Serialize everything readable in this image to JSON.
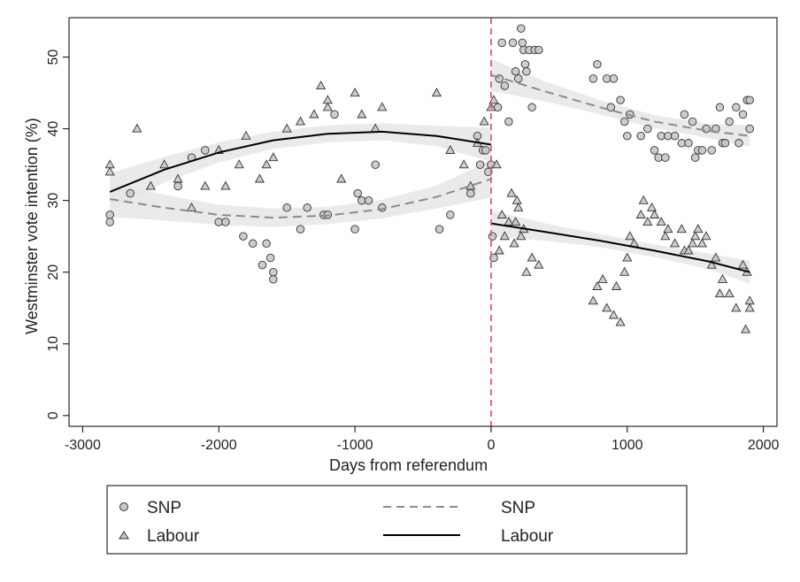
{
  "chart_data": {
    "type": "scatter",
    "xlabel": "Days from referendum",
    "ylabel": "Westminster vote intention (%)",
    "xlim": [
      -3100,
      2100
    ],
    "ylim": [
      -1.5,
      55.5
    ],
    "xticks": [
      -3000,
      -2000,
      -1000,
      0,
      1000,
      2000
    ],
    "yticks": [
      0,
      10,
      20,
      30,
      40,
      50
    ],
    "reference_line": {
      "x": 0,
      "color": "#e05a7a",
      "style": "dashed"
    },
    "legend": {
      "placement": "bottom",
      "entries": [
        {
          "label": "SNP",
          "kind": "marker",
          "marker": "circle"
        },
        {
          "label": "Labour",
          "kind": "marker",
          "marker": "triangle"
        },
        {
          "label": "SNP",
          "kind": "line",
          "style": "dashed"
        },
        {
          "label": "Labour",
          "kind": "line",
          "style": "solid"
        }
      ]
    },
    "colors": {
      "marker_fill": "#c8c8c8",
      "marker_stroke": "#333333",
      "snp_fit": "#8c8c8c",
      "labour_fit": "#000000",
      "ci_band": "#e6e6e6"
    },
    "series": [
      {
        "name": "SNP",
        "marker": "circle",
        "points": [
          [
            -2800,
            28
          ],
          [
            -2800,
            27
          ],
          [
            -2650,
            31
          ],
          [
            -2300,
            32
          ],
          [
            -2200,
            36
          ],
          [
            -2100,
            37
          ],
          [
            -2000,
            27
          ],
          [
            -1950,
            27
          ],
          [
            -1820,
            25
          ],
          [
            -1750,
            24
          ],
          [
            -1680,
            21
          ],
          [
            -1650,
            24
          ],
          [
            -1620,
            22
          ],
          [
            -1600,
            19
          ],
          [
            -1600,
            20
          ],
          [
            -1500,
            29
          ],
          [
            -1400,
            26
          ],
          [
            -1350,
            29
          ],
          [
            -1230,
            28
          ],
          [
            -1200,
            28
          ],
          [
            -1150,
            42
          ],
          [
            -1000,
            26
          ],
          [
            -980,
            31
          ],
          [
            -950,
            30
          ],
          [
            -900,
            30
          ],
          [
            -850,
            35
          ],
          [
            -800,
            29
          ],
          [
            -380,
            26
          ],
          [
            -300,
            28
          ],
          [
            -150,
            31
          ],
          [
            -100,
            39
          ],
          [
            -80,
            35
          ],
          [
            -60,
            37
          ],
          [
            -40,
            37
          ],
          [
            -20,
            34
          ],
          [
            0,
            35
          ],
          [
            10,
            25
          ],
          [
            20,
            22
          ],
          [
            50,
            43
          ],
          [
            60,
            47
          ],
          [
            80,
            52
          ],
          [
            100,
            46
          ],
          [
            130,
            41
          ],
          [
            160,
            52
          ],
          [
            180,
            48
          ],
          [
            200,
            47
          ],
          [
            220,
            54
          ],
          [
            230,
            52
          ],
          [
            240,
            51
          ],
          [
            250,
            49
          ],
          [
            260,
            48
          ],
          [
            280,
            51
          ],
          [
            300,
            43
          ],
          [
            320,
            51
          ],
          [
            350,
            51
          ],
          [
            750,
            47
          ],
          [
            780,
            49
          ],
          [
            850,
            47
          ],
          [
            880,
            43
          ],
          [
            900,
            47
          ],
          [
            950,
            44
          ],
          [
            980,
            41
          ],
          [
            1000,
            39
          ],
          [
            1020,
            42
          ],
          [
            1100,
            39
          ],
          [
            1150,
            40
          ],
          [
            1200,
            37
          ],
          [
            1230,
            36
          ],
          [
            1250,
            39
          ],
          [
            1280,
            36
          ],
          [
            1300,
            39
          ],
          [
            1350,
            39
          ],
          [
            1400,
            38
          ],
          [
            1420,
            42
          ],
          [
            1450,
            38
          ],
          [
            1480,
            41
          ],
          [
            1500,
            36
          ],
          [
            1520,
            37
          ],
          [
            1550,
            37
          ],
          [
            1580,
            40
          ],
          [
            1620,
            37
          ],
          [
            1650,
            40
          ],
          [
            1680,
            43
          ],
          [
            1700,
            38
          ],
          [
            1720,
            38
          ],
          [
            1750,
            41
          ],
          [
            1800,
            43
          ],
          [
            1820,
            38
          ],
          [
            1850,
            42
          ],
          [
            1880,
            44
          ],
          [
            1900,
            44
          ],
          [
            1900,
            40
          ]
        ]
      },
      {
        "name": "Labour",
        "marker": "triangle",
        "points": [
          [
            -2800,
            35
          ],
          [
            -2800,
            34
          ],
          [
            -2600,
            40
          ],
          [
            -2500,
            32
          ],
          [
            -2400,
            35
          ],
          [
            -2300,
            33
          ],
          [
            -2200,
            29
          ],
          [
            -2100,
            32
          ],
          [
            -2000,
            37
          ],
          [
            -1950,
            32
          ],
          [
            -1850,
            35
          ],
          [
            -1800,
            39
          ],
          [
            -1700,
            33
          ],
          [
            -1650,
            35
          ],
          [
            -1600,
            36
          ],
          [
            -1500,
            40
          ],
          [
            -1400,
            41
          ],
          [
            -1300,
            42
          ],
          [
            -1250,
            46
          ],
          [
            -1200,
            43
          ],
          [
            -1200,
            44
          ],
          [
            -1100,
            33
          ],
          [
            -1000,
            45
          ],
          [
            -950,
            42
          ],
          [
            -850,
            40
          ],
          [
            -800,
            43
          ],
          [
            -400,
            45
          ],
          [
            -300,
            37
          ],
          [
            -200,
            35
          ],
          [
            -150,
            32
          ],
          [
            -100,
            38
          ],
          [
            -50,
            41
          ],
          [
            0,
            43
          ],
          [
            20,
            44
          ],
          [
            40,
            35
          ],
          [
            60,
            23
          ],
          [
            80,
            28
          ],
          [
            100,
            25
          ],
          [
            130,
            27
          ],
          [
            150,
            31
          ],
          [
            170,
            24
          ],
          [
            180,
            27
          ],
          [
            190,
            30
          ],
          [
            200,
            29
          ],
          [
            220,
            25
          ],
          [
            240,
            26
          ],
          [
            260,
            20
          ],
          [
            300,
            22
          ],
          [
            350,
            21
          ],
          [
            750,
            16
          ],
          [
            780,
            18
          ],
          [
            820,
            19
          ],
          [
            850,
            15
          ],
          [
            900,
            14
          ],
          [
            920,
            18
          ],
          [
            950,
            13
          ],
          [
            980,
            20
          ],
          [
            1000,
            22
          ],
          [
            1020,
            25
          ],
          [
            1050,
            24
          ],
          [
            1100,
            28
          ],
          [
            1120,
            30
          ],
          [
            1150,
            27
          ],
          [
            1180,
            29
          ],
          [
            1200,
            28
          ],
          [
            1250,
            27
          ],
          [
            1280,
            25
          ],
          [
            1300,
            26
          ],
          [
            1350,
            24
          ],
          [
            1400,
            26
          ],
          [
            1420,
            23
          ],
          [
            1450,
            23
          ],
          [
            1480,
            24
          ],
          [
            1500,
            25
          ],
          [
            1520,
            26
          ],
          [
            1550,
            24
          ],
          [
            1580,
            25
          ],
          [
            1620,
            21
          ],
          [
            1650,
            22
          ],
          [
            1680,
            17
          ],
          [
            1700,
            19
          ],
          [
            1750,
            17
          ],
          [
            1800,
            15
          ],
          [
            1850,
            21
          ],
          [
            1870,
            12
          ],
          [
            1900,
            16
          ],
          [
            1900,
            15
          ],
          [
            1880,
            20
          ]
        ]
      },
      {
        "name": "SNP",
        "kind": "fit",
        "style": "dashed",
        "segments": [
          {
            "x": [
              -2800,
              -2400,
              -2000,
              -1600,
              -1200,
              -800,
              -400,
              0
            ],
            "y": [
              30.2,
              29.0,
              28.0,
              27.6,
              27.9,
              28.8,
              30.5,
              33.0
            ],
            "ci": [
              2.5,
              1.8,
              1.4,
              1.3,
              1.2,
              1.3,
              1.6,
              2.6
            ]
          },
          {
            "x": [
              0,
              400,
              800,
              1200,
              1600,
              1900
            ],
            "y": [
              47.5,
              45.2,
              43.0,
              41.0,
              39.7,
              39.0
            ],
            "ci": [
              2.2,
              1.4,
              1.0,
              0.9,
              1.0,
              1.5
            ]
          }
        ]
      },
      {
        "name": "Labour",
        "kind": "fit",
        "style": "solid",
        "segments": [
          {
            "x": [
              -2800,
              -2400,
              -2000,
              -1600,
              -1200,
              -800,
              -400,
              0
            ],
            "y": [
              31.2,
              34.3,
              36.7,
              38.4,
              39.3,
              39.6,
              39.0,
              37.8
            ],
            "ci": [
              2.6,
              1.8,
              1.4,
              1.2,
              1.2,
              1.2,
              1.4,
              2.4
            ]
          },
          {
            "x": [
              0,
              400,
              800,
              1200,
              1600,
              1900
            ],
            "y": [
              26.8,
              25.6,
              24.4,
              23.0,
              21.5,
              20.0
            ],
            "ci": [
              1.8,
              1.2,
              0.9,
              0.9,
              1.1,
              1.6
            ]
          }
        ]
      }
    ]
  }
}
